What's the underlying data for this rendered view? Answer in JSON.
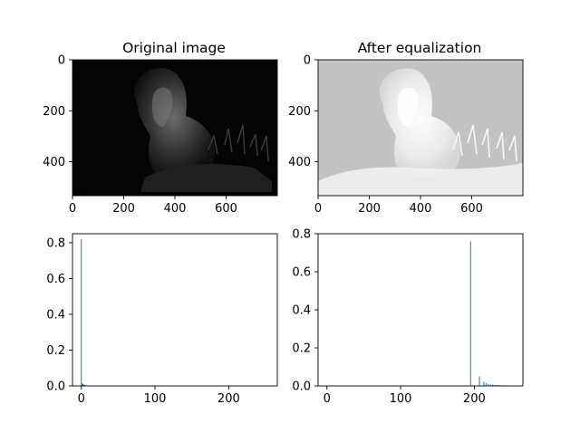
{
  "chart_data": [
    {
      "type": "image",
      "title": "Original image",
      "image_description": "dark grayscale photo of a lion lying in grass at night",
      "x_ticks": [
        "0",
        "200",
        "400",
        "600"
      ],
      "y_ticks": [
        "0",
        "200",
        "400"
      ],
      "xlim": [
        0,
        800
      ],
      "ylim": [
        533,
        0
      ]
    },
    {
      "type": "image",
      "title": "After equalization",
      "image_description": "histogram-equalized lion photo on a light gray background",
      "x_ticks": [
        "0",
        "200",
        "400",
        "600"
      ],
      "y_ticks": [
        "0",
        "200",
        "400"
      ],
      "xlim": [
        0,
        800
      ],
      "ylim": [
        533,
        0
      ]
    },
    {
      "type": "bar",
      "title": "",
      "xlim": [
        -12,
        266
      ],
      "ylim": [
        0,
        0.85
      ],
      "x_ticks": [
        "0",
        "100",
        "200"
      ],
      "y_ticks": [
        "0.0",
        "0.2",
        "0.4",
        "0.6",
        "0.8"
      ],
      "color": "#1f77b4",
      "bins": [
        {
          "x": 0,
          "value": 0.82
        },
        {
          "x": 1,
          "value": 0.014
        },
        {
          "x": 2,
          "value": 0.01
        },
        {
          "x": 3,
          "value": 0.008
        },
        {
          "x": 4,
          "value": 0.006
        },
        {
          "x": 5,
          "value": 0.004
        },
        {
          "x": 6,
          "value": 0.003
        },
        {
          "x": 7,
          "value": 0.002
        },
        {
          "x": 8,
          "value": 0.0015
        },
        {
          "x": 9,
          "value": 0.001
        },
        {
          "x": 10,
          "value": 0.001
        }
      ]
    },
    {
      "type": "bar",
      "title": "",
      "xlim": [
        -12,
        266
      ],
      "ylim": [
        0,
        0.8
      ],
      "x_ticks": [
        "0",
        "100",
        "200"
      ],
      "y_ticks": [
        "0.0",
        "0.2",
        "0.4",
        "0.6",
        "0.8"
      ],
      "color": "#1f77b4",
      "bins": [
        {
          "x": 195,
          "value": 0.76
        },
        {
          "x": 207,
          "value": 0.05
        },
        {
          "x": 213,
          "value": 0.022
        },
        {
          "x": 216,
          "value": 0.015
        },
        {
          "x": 219,
          "value": 0.01
        },
        {
          "x": 222,
          "value": 0.008
        },
        {
          "x": 225,
          "value": 0.007
        },
        {
          "x": 228,
          "value": 0.005
        },
        {
          "x": 231,
          "value": 0.005
        },
        {
          "x": 234,
          "value": 0.004
        },
        {
          "x": 237,
          "value": 0.003
        },
        {
          "x": 240,
          "value": 0.003
        },
        {
          "x": 244,
          "value": 0.002
        },
        {
          "x": 248,
          "value": 0.002
        }
      ]
    }
  ]
}
